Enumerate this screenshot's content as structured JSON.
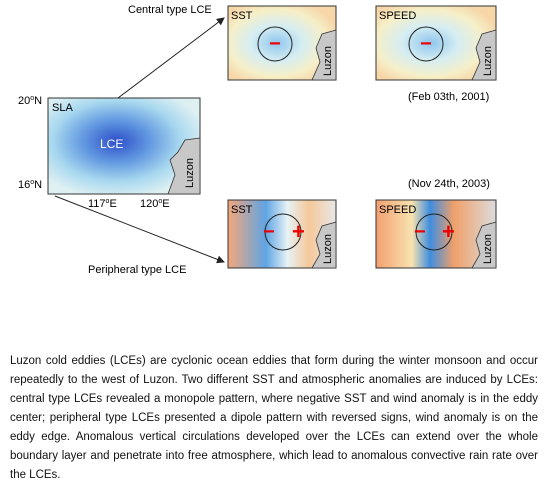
{
  "figure": {
    "central_label": "Central type LCE",
    "peripheral_label": "Peripheral type LCE",
    "sla_panel": {
      "title": "SLA",
      "eddy": "LCE",
      "land": "Luzon",
      "lat_labels": [
        {
          "deg": "20",
          "sup": "o",
          "hem": "N"
        },
        {
          "deg": "16",
          "sup": "o",
          "hem": "N"
        }
      ],
      "lon_labels": [
        {
          "deg": "117",
          "sup": "o",
          "hem": "E"
        },
        {
          "deg": "120",
          "sup": "o",
          "hem": "E"
        }
      ]
    },
    "central_panels": [
      {
        "title": "SST",
        "land": "Luzon",
        "sign": "−"
      },
      {
        "title": "SPEED",
        "land": "Luzon",
        "sign": "−"
      }
    ],
    "central_date": "(Feb 03th, 2001)",
    "peripheral_date": "(Nov 24th, 2003)",
    "peripheral_panels": [
      {
        "title": "SST",
        "land": "Luzon",
        "minus": "−",
        "plus": "+"
      },
      {
        "title": "SPEED",
        "land": "Luzon",
        "minus": "−",
        "plus": "+"
      }
    ]
  },
  "abstract": "Luzon cold eddies (LCEs) are cyclonic ocean eddies that form during the winter monsoon and occur repeatedly to the west of Luzon. Two different SST and atmospheric anomalies are induced by LCEs: central type LCEs revealed a monopole pattern, where negative SST and wind anomaly is in the eddy center; peripheral type LCEs presented a dipole pattern with reversed signs, wind anomaly is on the eddy edge. Anomalous vertical circulations developed over the LCEs can extend over the whole boundary layer and penetrate into free atmosphere, which lead to anomalous convective rain rate over the LCEs."
}
